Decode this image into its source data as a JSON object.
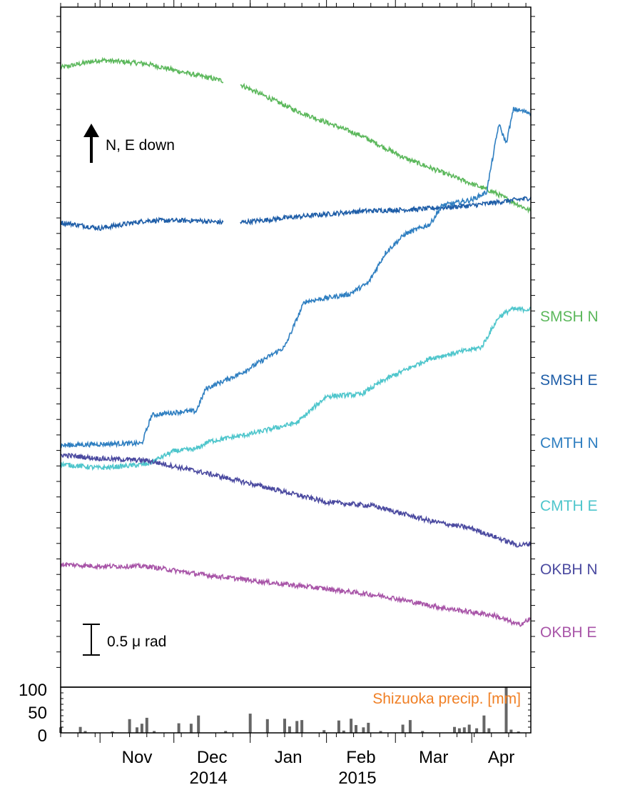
{
  "chart_data": {
    "type": "line",
    "x_axis": {
      "start": "2014-10-16",
      "end": "2015-04-25",
      "months": [
        {
          "label": "Nov",
          "date": "2014-11-01"
        },
        {
          "label": "Dec",
          "date": "2014-12-01"
        },
        {
          "label": "Jan",
          "date": "2015-01-01"
        },
        {
          "label": "Feb",
          "date": "2015-02-01"
        },
        {
          "label": "Mar",
          "date": "2015-03-01"
        },
        {
          "label": "Apr",
          "date": "2015-04-01"
        }
      ],
      "years": [
        {
          "label": "2014",
          "under": "Dec"
        },
        {
          "label": "2015",
          "under": "Feb"
        }
      ]
    },
    "annotations": {
      "direction": "N, E down",
      "scale_bar": "0.5 μ rad",
      "scale_bar_value_urad": 0.5
    },
    "series": [
      {
        "name": "SMSH N",
        "color": "#5cb85c",
        "gap": [
          "2014-12-21",
          "2014-12-28"
        ],
        "points": [
          [
            "2014-10-16",
            3.28
          ],
          [
            "2014-11-01",
            3.32
          ],
          [
            "2014-11-20",
            3.3
          ],
          [
            "2014-12-10",
            3.24
          ],
          [
            "2014-12-21",
            3.21
          ],
          [
            "2014-12-28",
            3.19
          ],
          [
            "2015-01-20",
            3.05
          ],
          [
            "2015-02-15",
            2.92
          ],
          [
            "2015-03-05",
            2.8
          ],
          [
            "2015-03-25",
            2.7
          ],
          [
            "2015-04-10",
            2.62
          ],
          [
            "2015-04-25",
            2.52
          ]
        ]
      },
      {
        "name": "SMSH E",
        "color": "#1f5ea8",
        "gap": [
          "2014-12-21",
          "2014-12-28"
        ],
        "points": [
          [
            "2014-10-16",
            2.46
          ],
          [
            "2014-11-01",
            2.43
          ],
          [
            "2014-11-20",
            2.47
          ],
          [
            "2014-12-10",
            2.47
          ],
          [
            "2014-12-21",
            2.46
          ],
          [
            "2014-12-28",
            2.46
          ],
          [
            "2015-01-20",
            2.49
          ],
          [
            "2015-02-15",
            2.52
          ],
          [
            "2015-03-10",
            2.53
          ],
          [
            "2015-04-01",
            2.55
          ],
          [
            "2015-04-25",
            2.59
          ]
        ]
      },
      {
        "name": "CMTH N",
        "color": "#2f7fc1",
        "points": [
          [
            "2014-10-16",
            1.28
          ],
          [
            "2014-11-10",
            1.29
          ],
          [
            "2014-11-18",
            1.29
          ],
          [
            "2014-11-22",
            1.44
          ],
          [
            "2014-12-05",
            1.46
          ],
          [
            "2014-12-10",
            1.46
          ],
          [
            "2014-12-14",
            1.58
          ],
          [
            "2014-12-28",
            1.66
          ],
          [
            "2015-01-15",
            1.8
          ],
          [
            "2015-01-23",
            2.04
          ],
          [
            "2015-02-10",
            2.08
          ],
          [
            "2015-02-18",
            2.14
          ],
          [
            "2015-02-25",
            2.3
          ],
          [
            "2015-03-05",
            2.4
          ],
          [
            "2015-03-15",
            2.45
          ],
          [
            "2015-03-20",
            2.55
          ],
          [
            "2015-04-01",
            2.58
          ],
          [
            "2015-04-07",
            2.62
          ],
          [
            "2015-04-12",
            2.98
          ],
          [
            "2015-04-15",
            2.88
          ],
          [
            "2015-04-18",
            3.06
          ],
          [
            "2015-04-25",
            3.04
          ]
        ]
      },
      {
        "name": "CMTH E",
        "color": "#4fc6cc",
        "points": [
          [
            "2014-10-16",
            1.18
          ],
          [
            "2014-11-01",
            1.16
          ],
          [
            "2014-11-20",
            1.18
          ],
          [
            "2014-12-01",
            1.25
          ],
          [
            "2014-12-10",
            1.26
          ],
          [
            "2014-12-15",
            1.3
          ],
          [
            "2015-01-01",
            1.34
          ],
          [
            "2015-01-20",
            1.4
          ],
          [
            "2015-02-01",
            1.54
          ],
          [
            "2015-02-15",
            1.55
          ],
          [
            "2015-02-25",
            1.63
          ],
          [
            "2015-03-15",
            1.74
          ],
          [
            "2015-04-05",
            1.8
          ],
          [
            "2015-04-12",
            1.96
          ],
          [
            "2015-04-17",
            2.0
          ],
          [
            "2015-04-25",
            2.0
          ]
        ]
      },
      {
        "name": "OKBH N",
        "color": "#4b4aa0",
        "points": [
          [
            "2014-10-16",
            1.23
          ],
          [
            "2014-11-01",
            1.21
          ],
          [
            "2014-11-20",
            1.2
          ],
          [
            "2014-12-15",
            1.13
          ],
          [
            "2015-01-10",
            1.05
          ],
          [
            "2015-02-01",
            0.98
          ],
          [
            "2015-02-20",
            0.96
          ],
          [
            "2015-03-15",
            0.88
          ],
          [
            "2015-04-01",
            0.84
          ],
          [
            "2015-04-20",
            0.75
          ],
          [
            "2015-04-25",
            0.76
          ]
        ]
      },
      {
        "name": "OKBH E",
        "color": "#a855a8",
        "points": [
          [
            "2014-10-16",
            0.65
          ],
          [
            "2014-11-01",
            0.64
          ],
          [
            "2014-11-20",
            0.64
          ],
          [
            "2014-12-10",
            0.6
          ],
          [
            "2015-01-05",
            0.56
          ],
          [
            "2015-02-01",
            0.52
          ],
          [
            "2015-02-25",
            0.48
          ],
          [
            "2015-03-20",
            0.42
          ],
          [
            "2015-04-10",
            0.38
          ],
          [
            "2015-04-20",
            0.33
          ],
          [
            "2015-04-25",
            0.36
          ]
        ]
      }
    ],
    "precip": {
      "label": "Shizuoka precip. [mm]",
      "label_color": "#f07f24",
      "bar_color": "#666666",
      "ylim": [
        0,
        100
      ],
      "yticks": [
        "100",
        "50",
        "0"
      ],
      "bars": [
        [
          "2014-10-16",
          12
        ],
        [
          "2014-10-24",
          13
        ],
        [
          "2014-10-26",
          4
        ],
        [
          "2014-11-06",
          3
        ],
        [
          "2014-11-13",
          30
        ],
        [
          "2014-11-16",
          12
        ],
        [
          "2014-11-18",
          20
        ],
        [
          "2014-11-20",
          33
        ],
        [
          "2014-11-23",
          4
        ],
        [
          "2014-12-03",
          21
        ],
        [
          "2014-12-08",
          20
        ],
        [
          "2014-12-11",
          38
        ],
        [
          "2014-12-22",
          4
        ],
        [
          "2015-01-01",
          42
        ],
        [
          "2015-01-08",
          30
        ],
        [
          "2015-01-15",
          31
        ],
        [
          "2015-01-17",
          14
        ],
        [
          "2015-01-20",
          26
        ],
        [
          "2015-01-22",
          28
        ],
        [
          "2015-01-31",
          6
        ],
        [
          "2015-02-06",
          27
        ],
        [
          "2015-02-08",
          5
        ],
        [
          "2015-02-11",
          31
        ],
        [
          "2015-02-13",
          17
        ],
        [
          "2015-02-16",
          12
        ],
        [
          "2015-02-18",
          22
        ],
        [
          "2015-02-23",
          4
        ],
        [
          "2015-03-04",
          18
        ],
        [
          "2015-03-07",
          28
        ],
        [
          "2015-03-12",
          4
        ],
        [
          "2015-03-25",
          13
        ],
        [
          "2015-03-27",
          10
        ],
        [
          "2015-03-29",
          12
        ],
        [
          "2015-03-31",
          18
        ],
        [
          "2015-04-03",
          10
        ],
        [
          "2015-04-06",
          38
        ],
        [
          "2015-04-08",
          10
        ],
        [
          "2015-04-15",
          100
        ],
        [
          "2015-04-17",
          7
        ],
        [
          "2015-04-20",
          3
        ]
      ]
    }
  }
}
